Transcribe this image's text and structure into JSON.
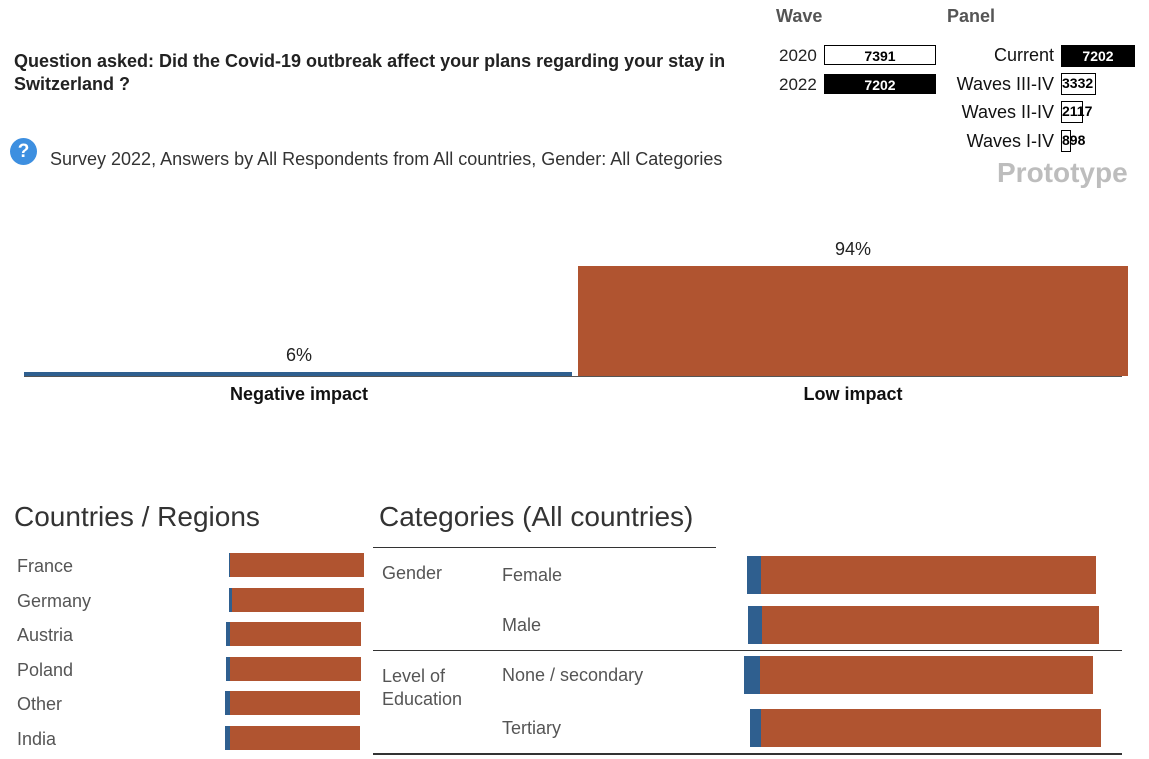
{
  "question": "Question asked: Did the Covid-19 outbreak affect your plans regarding your stay in Switzerland ?",
  "help_icon": "?",
  "subtitle": "Survey 2022, Answers by All Respondents from All countries, Gender: All Categories",
  "wave": {
    "title": "Wave",
    "rows": [
      {
        "year": "2020",
        "count": "7391",
        "selected": false
      },
      {
        "year": "2022",
        "count": "7202",
        "selected": true
      }
    ]
  },
  "panel": {
    "title": "Panel",
    "rows": [
      {
        "label": "Current",
        "count": "7202"
      },
      {
        "label": "Waves III-IV",
        "count": "3332"
      },
      {
        "label": "Waves II-IV",
        "count": "2117"
      },
      {
        "label": "Waves I-IV",
        "count": "898"
      }
    ]
  },
  "prototype_label": "Prototype",
  "colors": {
    "negative": "#2f5f8f",
    "low": "#b05430"
  },
  "chart_data": [
    {
      "type": "bar",
      "categories": [
        "Negative impact",
        "Low impact"
      ],
      "values": [
        6,
        94
      ],
      "value_labels": [
        "6%",
        "94%"
      ],
      "ylim": [
        0,
        100
      ]
    },
    {
      "type": "bar",
      "title": "Countries / Regions",
      "orientation": "horizontal-stacked",
      "categories": [
        "France",
        "Germany",
        "Austria",
        "Poland",
        "Other",
        "India"
      ],
      "series": [
        {
          "values": [
            0.5,
            2,
            3,
            3,
            4,
            4
          ]
        },
        {
          "values": [
            99.5,
            98,
            97,
            97,
            96,
            96
          ]
        }
      ]
    },
    {
      "type": "bar",
      "title": "Categories (All countries)",
      "orientation": "horizontal-stacked",
      "groups": [
        {
          "label": "Gender",
          "categories": [
            "Female",
            "Male"
          ]
        },
        {
          "label": "Level of Education",
          "categories": [
            "None / secondary",
            "Tertiary"
          ]
        }
      ],
      "categories": [
        "Female",
        "Male",
        "None / secondary",
        "Tertiary"
      ],
      "series": [
        {
          "values": [
            6,
            6,
            7,
            5
          ]
        },
        {
          "values": [
            94,
            94,
            93,
            95
          ]
        }
      ]
    }
  ]
}
